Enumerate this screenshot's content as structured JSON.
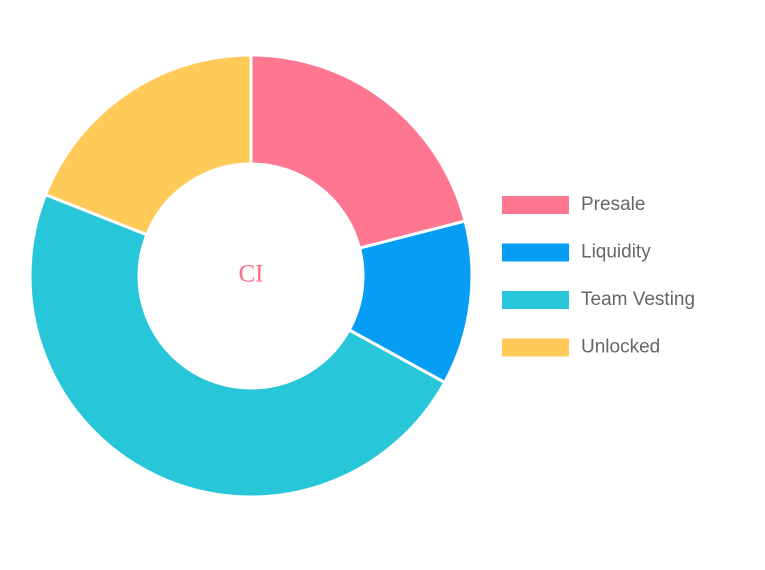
{
  "chart_data": {
    "type": "pie",
    "variant": "doughnut",
    "center_label": "CI",
    "categories": [
      "Presale",
      "Liquidity",
      "Team Vesting",
      "Unlocked"
    ],
    "values": [
      21,
      12,
      48,
      19
    ],
    "colors": [
      "#ff7690",
      "#069df5",
      "#27c6d8",
      "#ffca57"
    ],
    "legend_position": "right",
    "center_label_color": "#ff6b89"
  }
}
